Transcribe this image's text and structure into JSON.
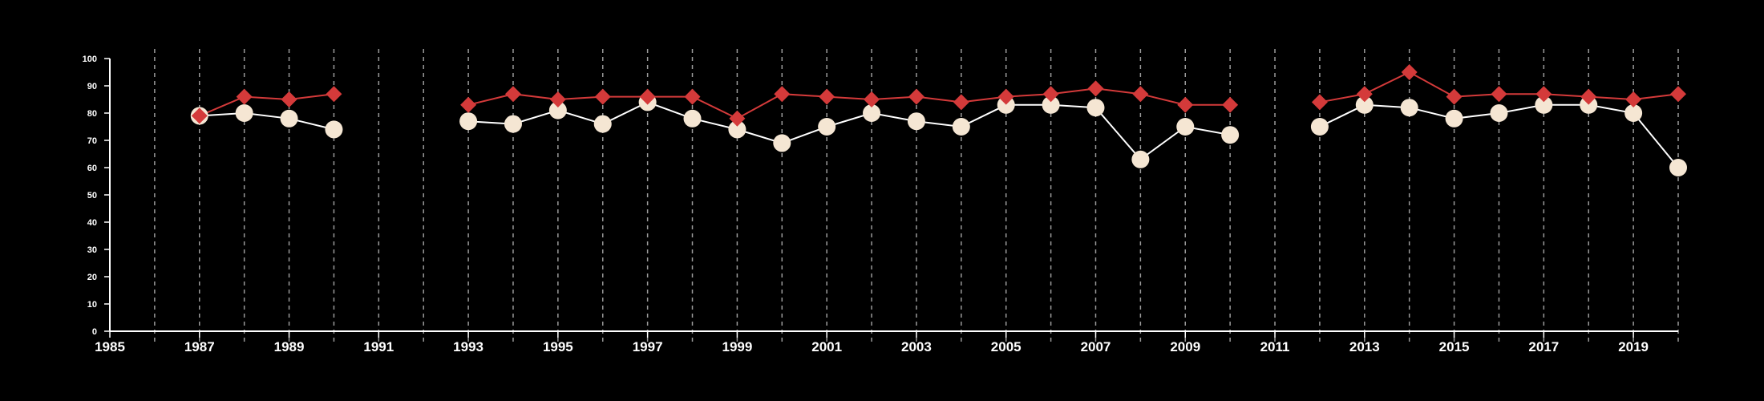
{
  "chart_data": {
    "type": "line",
    "title": "",
    "xlabel": "",
    "ylabel": "",
    "xlim": [
      1985,
      2020
    ],
    "ylim": [
      0,
      100
    ],
    "x_ticks": [
      1985,
      1987,
      1989,
      1991,
      1993,
      1995,
      1997,
      1999,
      2001,
      2003,
      2005,
      2007,
      2009,
      2011,
      2013,
      2015,
      2017,
      2019
    ],
    "y_ticks": [
      0,
      10,
      20,
      30,
      40,
      50,
      60,
      70,
      80,
      90,
      100
    ],
    "grid": "vertical dashed at every year",
    "series": [
      {
        "marker": "diamond",
        "color": "#d43a3a",
        "points": [
          [
            1987,
            79
          ],
          [
            1988,
            86
          ],
          [
            1989,
            85
          ],
          [
            1990,
            87
          ],
          [
            1993,
            83
          ],
          [
            1994,
            87
          ],
          [
            1995,
            85
          ],
          [
            1996,
            86
          ],
          [
            1997,
            86
          ],
          [
            1998,
            86
          ],
          [
            1999,
            78
          ],
          [
            2000,
            87
          ],
          [
            2001,
            86
          ],
          [
            2002,
            85
          ],
          [
            2003,
            86
          ],
          [
            2004,
            84
          ],
          [
            2005,
            86
          ],
          [
            2006,
            87
          ],
          [
            2007,
            89
          ],
          [
            2008,
            87
          ],
          [
            2009,
            83
          ],
          [
            2010,
            83
          ],
          [
            2012,
            84
          ],
          [
            2013,
            87
          ],
          [
            2014,
            95
          ],
          [
            2015,
            86
          ],
          [
            2016,
            87
          ],
          [
            2017,
            87
          ],
          [
            2018,
            86
          ],
          [
            2019,
            85
          ],
          [
            2020,
            87
          ]
        ]
      },
      {
        "marker": "circle",
        "color": "#f5e6d3",
        "line_color": "#ffffff",
        "points": [
          [
            1987,
            79
          ],
          [
            1988,
            80
          ],
          [
            1989,
            78
          ],
          [
            1990,
            74
          ],
          [
            1993,
            77
          ],
          [
            1994,
            76
          ],
          [
            1995,
            81
          ],
          [
            1996,
            76
          ],
          [
            1997,
            84
          ],
          [
            1998,
            78
          ],
          [
            1999,
            74
          ],
          [
            2000,
            69
          ],
          [
            2001,
            75
          ],
          [
            2002,
            80
          ],
          [
            2003,
            77
          ],
          [
            2004,
            75
          ],
          [
            2005,
            83
          ],
          [
            2006,
            83
          ],
          [
            2007,
            82
          ],
          [
            2008,
            63
          ],
          [
            2009,
            75
          ],
          [
            2010,
            72
          ],
          [
            2012,
            75
          ],
          [
            2013,
            83
          ],
          [
            2014,
            82
          ],
          [
            2015,
            78
          ],
          [
            2016,
            80
          ],
          [
            2017,
            83
          ],
          [
            2018,
            83
          ],
          [
            2019,
            80
          ],
          [
            2020,
            60
          ]
        ]
      }
    ]
  }
}
